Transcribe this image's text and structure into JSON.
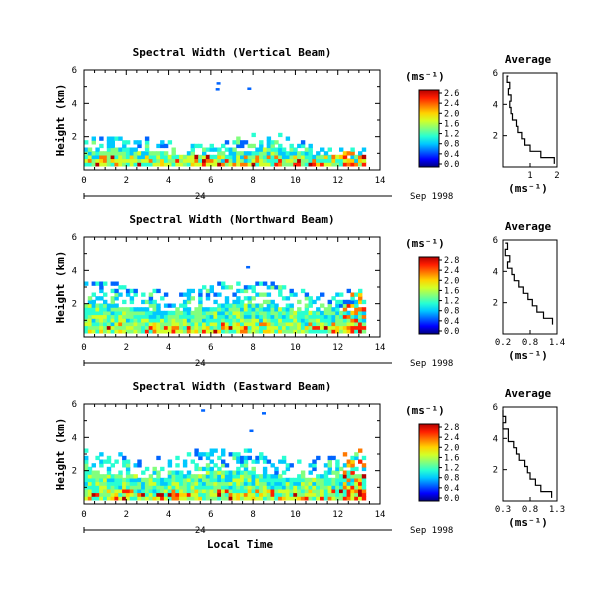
{
  "chart_data": {
    "type": "heatmap",
    "xlabel": "Local Time",
    "date_label": "Sep 1998",
    "day_label": "24",
    "x_ticks": [
      "0",
      "2",
      "4",
      "6",
      "8",
      "10",
      "12",
      "14"
    ],
    "xlim": [
      0,
      14
    ],
    "ylabel": "Height (km)",
    "y_ticks": [
      "2",
      "4",
      "6"
    ],
    "ylim": [
      0,
      6
    ],
    "colorbar_unit": "(ms⁻¹)",
    "colormap": [
      "#00007f",
      "#0000ff",
      "#0064ff",
      "#00c8ff",
      "#28ffd2",
      "#82ff7d",
      "#d2ff28",
      "#ffd200",
      "#ff7800",
      "#ff1e00",
      "#b40000"
    ],
    "panels": [
      {
        "title": "Spectral Width (Vertical Beam)",
        "colorbar_ticks": [
          "2.6",
          "2.4",
          "2.0",
          "1.6",
          "1.2",
          "0.8",
          "0.4",
          "0.0"
        ],
        "profile": {
          "title": "Average",
          "xunit": "(ms⁻¹)",
          "x_ticks": [
            "1",
            "2"
          ],
          "y_ticks": [
            "2",
            "4",
            "6"
          ],
          "xlim": [
            0,
            2
          ],
          "ylim": [
            0,
            6
          ],
          "heights": [
            0.2,
            0.6,
            1.0,
            1.4,
            1.8,
            2.2,
            2.6,
            3.0,
            3.4,
            3.8,
            4.2,
            4.6,
            5.0,
            5.4,
            5.8
          ],
          "values": [
            1.9,
            1.4,
            1.0,
            0.8,
            0.7,
            0.55,
            0.5,
            0.35,
            0.3,
            0.25,
            0.3,
            0.2,
            0.25,
            0.15,
            0.2
          ]
        }
      },
      {
        "title": "Spectral Width (Northward Beam)",
        "colorbar_ticks": [
          "2.8",
          "2.4",
          "2.0",
          "1.6",
          "1.2",
          "0.8",
          "0.4",
          "0.0"
        ],
        "profile": {
          "title": "Average",
          "xunit": "(ms⁻¹)",
          "x_ticks": [
            "0.2",
            "0.8",
            "1.4"
          ],
          "y_ticks": [
            "2",
            "4",
            "6"
          ],
          "xlim": [
            0.2,
            1.4
          ],
          "ylim": [
            0,
            6
          ],
          "heights": [
            0.6,
            1.0,
            1.4,
            1.8,
            2.2,
            2.6,
            3.0,
            3.4,
            3.8,
            4.2,
            4.6,
            5.0,
            5.4,
            5.8
          ],
          "values": [
            1.3,
            1.1,
            0.95,
            0.85,
            0.75,
            0.65,
            0.55,
            0.45,
            0.4,
            0.3,
            0.35,
            0.25,
            0.3,
            0.25
          ]
        }
      },
      {
        "title": "Spectral Width (Eastward Beam)",
        "colorbar_ticks": [
          "2.8",
          "2.4",
          "2.0",
          "1.6",
          "1.2",
          "0.8",
          "0.4",
          "0.0"
        ],
        "profile": {
          "title": "Average",
          "xunit": "(ms⁻¹)",
          "x_ticks": [
            "0.3",
            "0.8",
            "1.3"
          ],
          "y_ticks": [
            "2",
            "4",
            "6"
          ],
          "xlim": [
            0.3,
            1.3
          ],
          "ylim": [
            0,
            6
          ],
          "heights": [
            0.2,
            0.6,
            1.0,
            1.4,
            1.8,
            2.2,
            2.6,
            3.0,
            3.4,
            3.8,
            4.2,
            4.6,
            5.0,
            5.4,
            5.8
          ],
          "values": [
            1.2,
            1.0,
            0.9,
            0.8,
            0.75,
            0.7,
            0.6,
            0.55,
            0.5,
            0.4,
            0.4,
            0.3,
            0.35,
            0.3,
            0.3
          ]
        }
      }
    ]
  }
}
